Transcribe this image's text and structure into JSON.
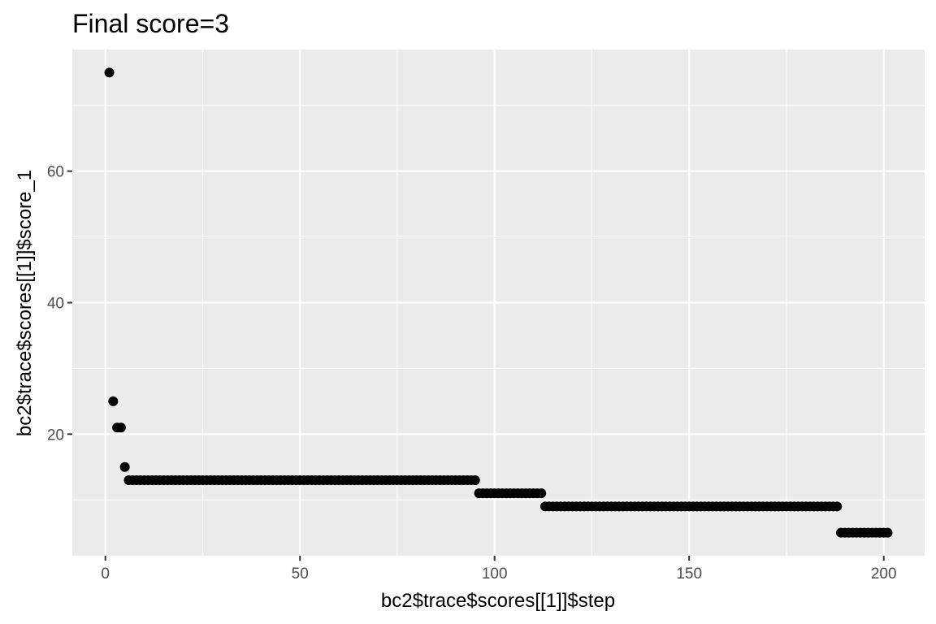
{
  "chart_data": {
    "type": "scatter",
    "title": "Final score=3",
    "xlabel": "bc2$trace$scores[[1]]$step",
    "ylabel": "bc2$trace$scores[[1]]$score_1",
    "xlim": [
      -8.5,
      210.5
    ],
    "ylim": [
      1.5,
      78.5
    ],
    "x_ticks": [
      0,
      50,
      100,
      150,
      200
    ],
    "x_tick_labels": [
      "0",
      "50",
      "100",
      "150",
      "200"
    ],
    "y_ticks": [
      20,
      40,
      60
    ],
    "y_tick_labels": [
      "20",
      "40",
      "60"
    ],
    "x_minor": [
      25,
      75,
      125,
      175
    ],
    "y_minor": [
      10,
      30,
      50,
      70
    ],
    "grid": true,
    "background": "#ebebeb",
    "grid_color": "#ffffff",
    "point_color": "#000000",
    "series": [
      {
        "points": [
          [
            1,
            75
          ],
          [
            2,
            25
          ],
          [
            3,
            21
          ],
          [
            4,
            21
          ],
          [
            5,
            15
          ],
          [
            6,
            13
          ],
          [
            95,
            13
          ],
          [
            96,
            11
          ],
          [
            112,
            11
          ],
          [
            113,
            9
          ],
          [
            188,
            9
          ],
          [
            189,
            5
          ],
          [
            201,
            5
          ]
        ],
        "runs": [
          {
            "x_from": 6,
            "x_to": 95,
            "y": 13
          },
          {
            "x_from": 96,
            "x_to": 112,
            "y": 11
          },
          {
            "x_from": 113,
            "x_to": 188,
            "y": 9
          },
          {
            "x_from": 189,
            "x_to": 201,
            "y": 5
          }
        ]
      }
    ]
  }
}
